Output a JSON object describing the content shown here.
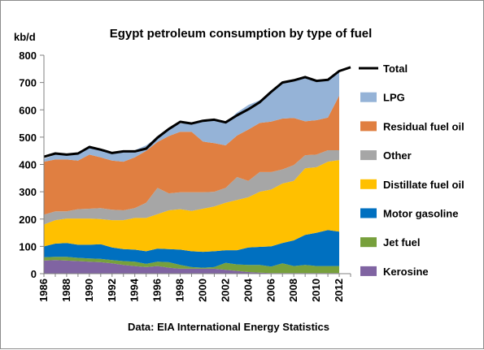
{
  "chart_data": {
    "type": "area",
    "title": "Egypt petroleum consumption by type of fuel",
    "ylabel": "kb/d",
    "source": "Data: EIA International Energy Statistics",
    "ylim": [
      0,
      800
    ],
    "yticks": [
      0,
      100,
      200,
      300,
      400,
      500,
      600,
      700,
      800
    ],
    "xlim": [
      1986,
      2013
    ],
    "xticks": [
      1986,
      1988,
      1990,
      1992,
      1994,
      1996,
      1998,
      2000,
      2002,
      2004,
      2006,
      2008,
      2010,
      2012
    ],
    "x": [
      1986,
      1987,
      1988,
      1989,
      1990,
      1991,
      1992,
      1993,
      1994,
      1995,
      1996,
      1997,
      1998,
      1999,
      2000,
      2001,
      2002,
      2003,
      2004,
      2005,
      2006,
      2007,
      2008,
      2009,
      2010,
      2011,
      2012
    ],
    "stacking": "stacked",
    "series": [
      {
        "name": "Kerosine",
        "color": "#8064a2",
        "values": [
          48,
          50,
          48,
          46,
          44,
          42,
          38,
          32,
          28,
          24,
          28,
          22,
          18,
          18,
          18,
          18,
          14,
          10,
          6,
          4,
          2,
          2,
          2,
          2,
          2,
          2,
          2
        ]
      },
      {
        "name": "Jet fuel",
        "color": "#77a03c",
        "values": [
          12,
          12,
          14,
          12,
          12,
          12,
          12,
          14,
          16,
          12,
          16,
          20,
          14,
          6,
          4,
          6,
          26,
          24,
          26,
          28,
          24,
          36,
          26,
          30,
          26,
          26,
          26
        ]
      },
      {
        "name": "Motor gasoline",
        "color": "#0070c0",
        "values": [
          40,
          48,
          50,
          48,
          50,
          54,
          46,
          44,
          44,
          46,
          48,
          48,
          56,
          58,
          58,
          58,
          46,
          52,
          64,
          66,
          74,
          74,
          94,
          110,
          122,
          132,
          126
        ]
      },
      {
        "name": "Distillate fuel oil",
        "color": "#ffc000",
        "values": [
          80,
          86,
          90,
          96,
          96,
          92,
          100,
          106,
          116,
          122,
          126,
          142,
          148,
          148,
          158,
          164,
          174,
          184,
          184,
          202,
          208,
          218,
          218,
          244,
          240,
          250,
          262
        ]
      },
      {
        "name": "Other",
        "color": "#a6a6a6",
        "values": [
          36,
          32,
          26,
          34,
          36,
          40,
          38,
          36,
          36,
          56,
          96,
          62,
          62,
          68,
          60,
          54,
          54,
          84,
          60,
          72,
          64,
          52,
          58,
          48,
          46,
          42,
          36
        ]
      },
      {
        "name": "Residual fuel oil",
        "color": "#e07f41",
        "values": [
          194,
          190,
          190,
          178,
          198,
          186,
          180,
          178,
          186,
          190,
          168,
          210,
          222,
          222,
          186,
          178,
          156,
          152,
          188,
          180,
          185,
          186,
          172,
          124,
          126,
          120,
          200
        ]
      },
      {
        "name": "LPG",
        "color": "#95b3d7",
        "values": [
          10,
          18,
          16,
          24,
          26,
          28,
          26,
          34,
          26,
          20,
          18,
          26,
          30,
          30,
          76,
          86,
          84,
          84,
          90,
          83,
          111,
          132,
          134,
          160,
          148,
          138,
          88
        ]
      }
    ],
    "total": {
      "name": "Total",
      "color": "#000000",
      "values": [
        428,
        440,
        436,
        440,
        464,
        454,
        442,
        448,
        448,
        458,
        498,
        530,
        556,
        550,
        560,
        564,
        554,
        580,
        602,
        628,
        666,
        700,
        708,
        720,
        706,
        710,
        742,
        756
      ],
      "x": [
        1986,
        1987,
        1988,
        1989,
        1990,
        1991,
        1992,
        1993,
        1994,
        1995,
        1996,
        1997,
        1998,
        1999,
        2000,
        2001,
        2002,
        2003,
        2004,
        2005,
        2006,
        2007,
        2008,
        2009,
        2010,
        2011,
        2012,
        2013
      ]
    },
    "legend": {
      "placement": "right",
      "order": [
        "Total",
        "LPG",
        "Residual fuel oil",
        "Other",
        "Distillate fuel oil",
        "Motor gasoline",
        "Jet fuel",
        "Kerosine"
      ]
    },
    "grid": false
  }
}
